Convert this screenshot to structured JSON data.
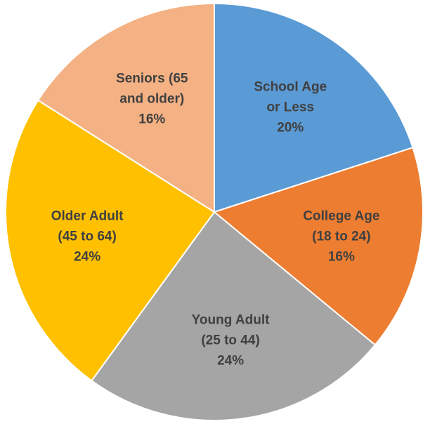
{
  "chart_data": {
    "type": "pie",
    "categories": [
      "School Age or Less",
      "College Age (18 to 24)",
      "Young Adult (25 to 44)",
      "Older Adult (45 to 64)",
      "Seniors (65 and older)"
    ],
    "values": [
      20,
      16,
      24,
      24,
      16
    ],
    "value_labels": [
      "20%",
      "16%",
      "24%",
      "24%",
      "16%"
    ],
    "colors": [
      "#5b9bd5",
      "#ed7d31",
      "#a5a5a5",
      "#ffc000",
      "#f4b183"
    ]
  }
}
